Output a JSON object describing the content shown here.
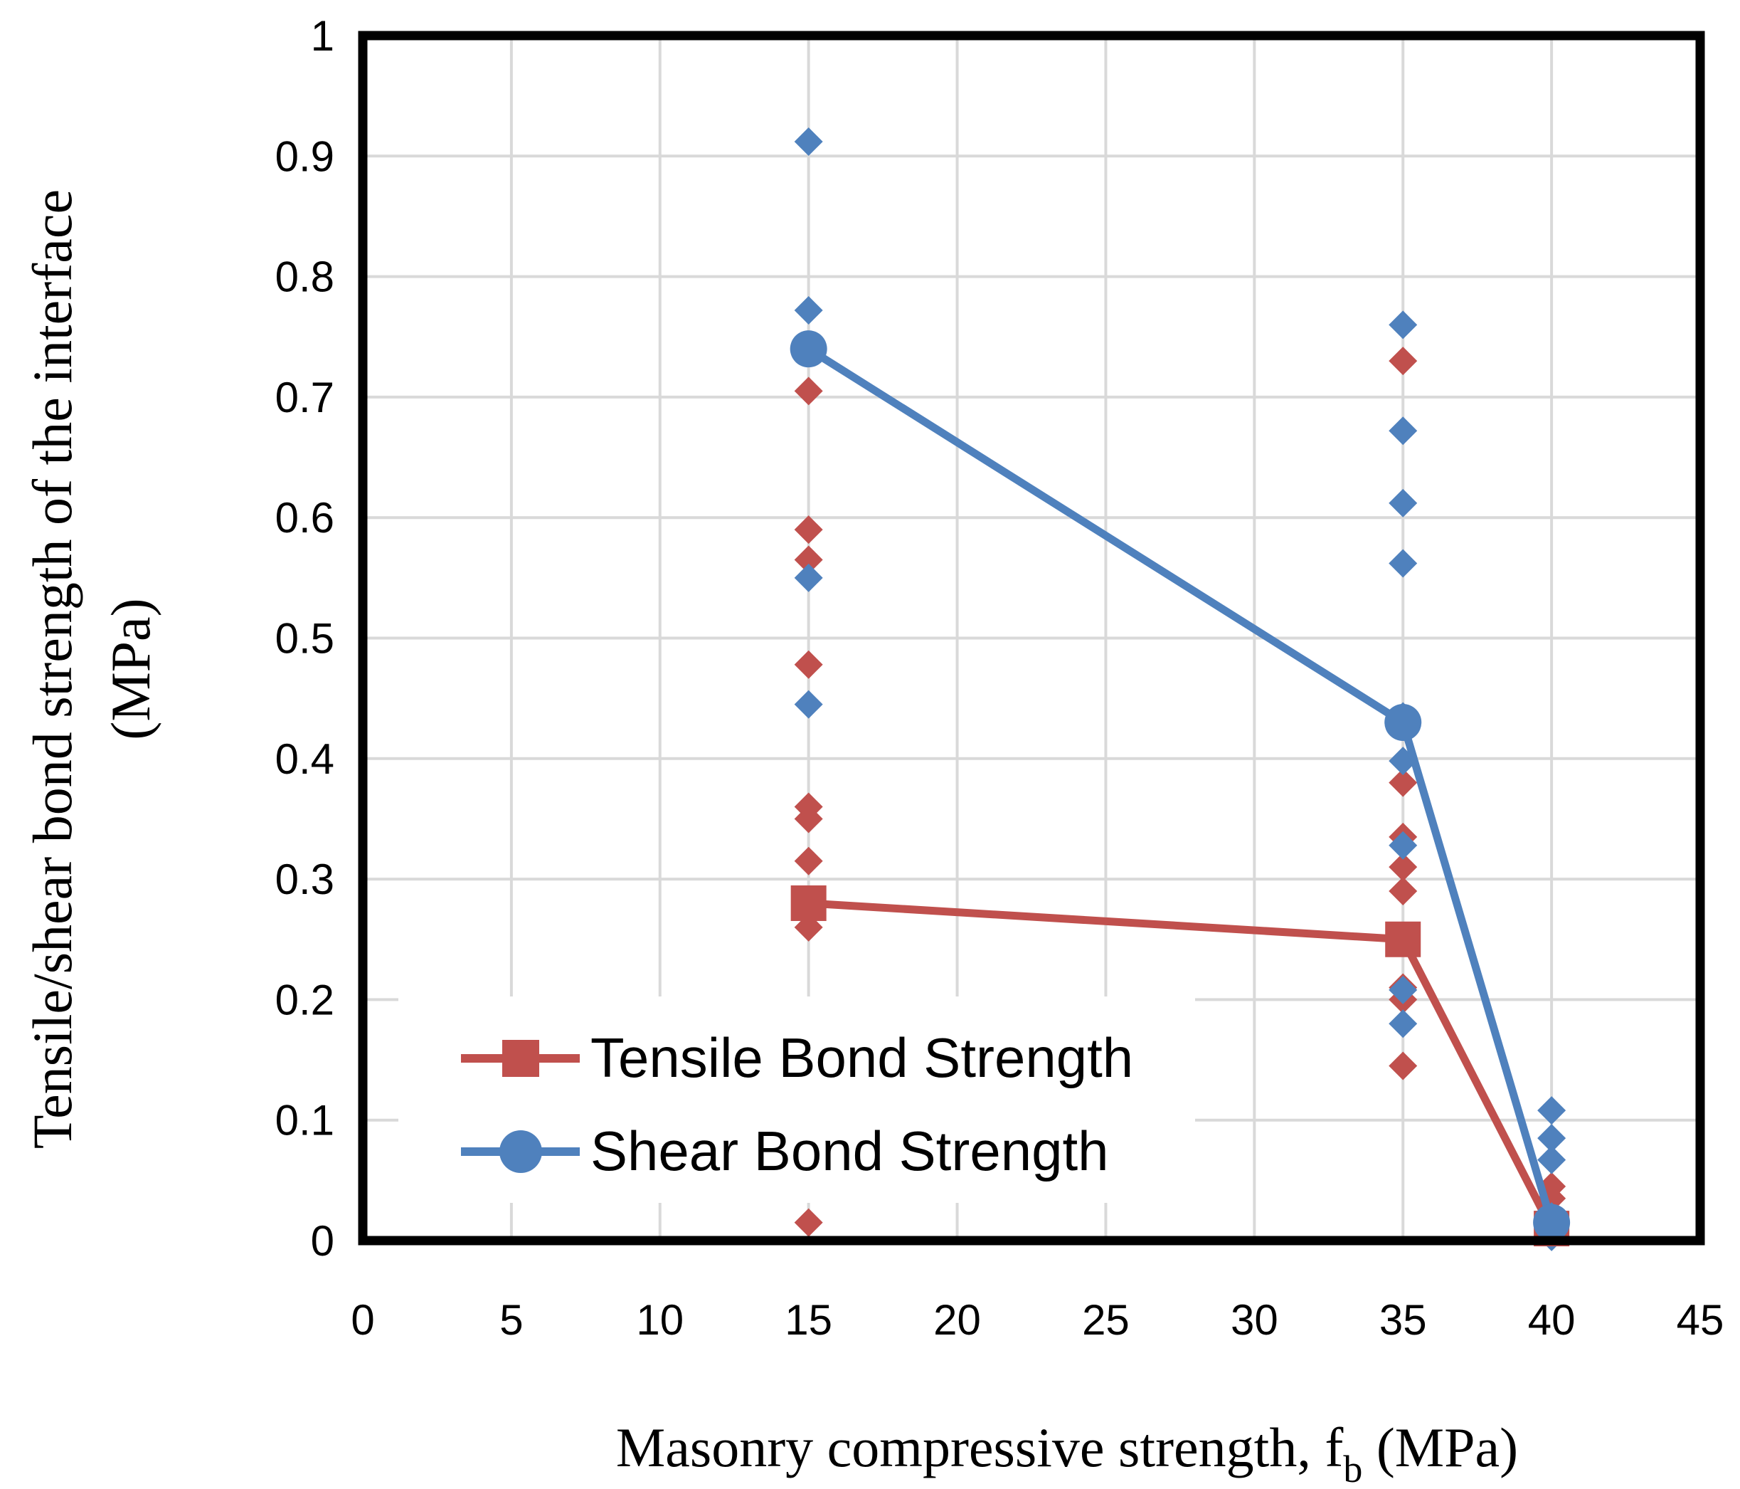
{
  "chart_data": {
    "type": "scatter",
    "xlabel_main": "Masonry compressive strength, f",
    "xlabel_sub": "b",
    "xlabel_unit": " (MPa)",
    "ylabel_line1": "Tensile/shear bond strength of the interface",
    "ylabel_line2": "(MPa)",
    "xlim": [
      0,
      45
    ],
    "ylim": [
      0,
      1
    ],
    "xticks": [
      0,
      5,
      10,
      15,
      20,
      25,
      30,
      35,
      40,
      45
    ],
    "yticks": [
      0,
      0.1,
      0.2,
      0.3,
      0.4,
      0.5,
      0.6,
      0.7,
      0.8,
      0.9,
      1
    ],
    "ytick_labels": [
      "0",
      "0.1",
      "0.2",
      "0.3",
      "0.4",
      "0.5",
      "0.6",
      "0.7",
      "0.8",
      "0.9",
      "1"
    ],
    "grid": true,
    "legend_position": "bottom-left",
    "colors": {
      "tensile": "#c0504d",
      "shear": "#4f81bd"
    },
    "series": [
      {
        "name": "Tensile Bond Strength",
        "kind": "mean-line",
        "marker": "square",
        "color": "#c0504d",
        "x": [
          15,
          35,
          40
        ],
        "y": [
          0.28,
          0.25,
          0.01
        ]
      },
      {
        "name": "Shear Bond Strength",
        "kind": "mean-line",
        "marker": "circle",
        "color": "#4f81bd",
        "x": [
          15,
          35,
          40
        ],
        "y": [
          0.74,
          0.43,
          0.015
        ]
      }
    ],
    "individual_tensile": {
      "color": "#c0504d",
      "marker": "diamond",
      "x": [
        15,
        15,
        15,
        15,
        15,
        15,
        15,
        15,
        15,
        15,
        35,
        35,
        35,
        35,
        35,
        35,
        35,
        35,
        35,
        40,
        40,
        40,
        40
      ],
      "y": [
        0.705,
        0.59,
        0.565,
        0.478,
        0.36,
        0.35,
        0.315,
        0.26,
        0.015,
        0.28,
        0.73,
        0.38,
        0.335,
        0.31,
        0.29,
        0.21,
        0.2,
        0.145,
        0.25,
        0.045,
        0.035,
        0.02,
        0.01
      ]
    },
    "individual_shear": {
      "color": "#4f81bd",
      "marker": "diamond",
      "x": [
        15,
        15,
        15,
        15,
        35,
        35,
        35,
        35,
        35,
        35,
        35,
        35,
        35,
        35,
        40,
        40,
        40,
        40,
        40
      ],
      "y": [
        0.912,
        0.772,
        0.55,
        0.445,
        0.76,
        0.672,
        0.612,
        0.562,
        0.435,
        0.398,
        0.328,
        0.252,
        0.208,
        0.18,
        0.108,
        0.085,
        0.067,
        0.02,
        0.003
      ]
    }
  }
}
